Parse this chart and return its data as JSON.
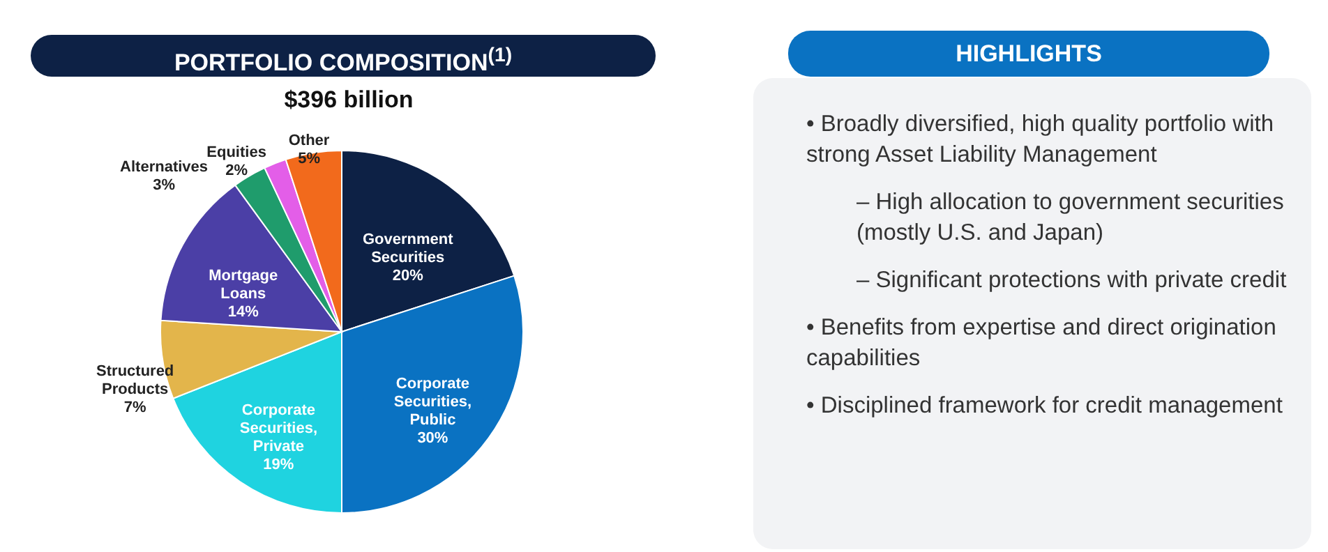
{
  "chart_data": [
    {
      "type": "pie",
      "title": "PORTFOLIO COMPOSITION$^{(1)}$",
      "subtitle": "$396 billion",
      "categories": [
        "Government Securities",
        "Corporate Securities, Public",
        "Corporate Securities, Private",
        "Structured Products",
        "Mortgage Loans",
        "Alternatives",
        "Equities",
        "Other"
      ],
      "values": [
        20,
        30,
        19,
        7,
        14,
        3,
        2,
        5
      ],
      "value_labels": [
        "20%",
        "30%",
        "19%",
        "7%",
        "14%",
        "3%",
        "2%",
        "5%"
      ],
      "colors": [
        "#0d2145",
        "#0a72c2",
        "#1fd3e0",
        "#e3b54b",
        "#4b3fa6",
        "#1f9c6c",
        "#e35ee8",
        "#f26a1c"
      ]
    },
    {
      "type": "other",
      "title": "HIGHLIGHTS",
      "annotations": [
        "• Broadly diversified, high quality portfolio with strong Asset Liability Management",
        "– High allocation to government securities (mostly U.S. and Japan)",
        "– Significant protections with private credit",
        "• Benefits from expertise and direct origination capabilities",
        "• Disciplined framework for credit management"
      ]
    }
  ]
}
